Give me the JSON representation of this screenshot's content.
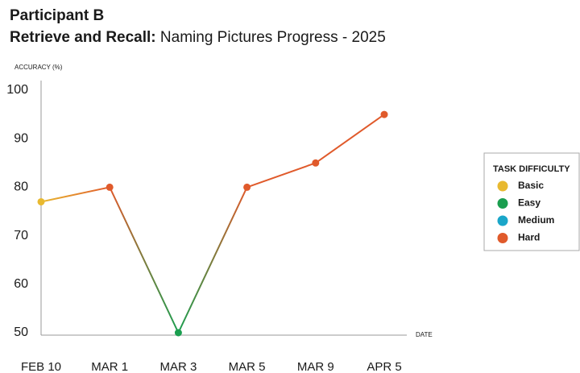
{
  "chart_data": {
    "type": "line",
    "title": "Participant B",
    "subtitle_bold": "Retrieve and Recall:",
    "subtitle": "Naming Pictures Progress - 2025",
    "y_label": "ACCURACY (%)",
    "x_label": "DATE",
    "categories": [
      "FEB 10",
      "MAR 1",
      "MAR 3",
      "MAR 5",
      "MAR 9",
      "APR 5"
    ],
    "series": [
      {
        "name": "Accuracy",
        "values": [
          77,
          80,
          50,
          80,
          85,
          95
        ],
        "point_difficulty": [
          "Basic",
          "Hard",
          "Easy",
          "Hard",
          "Hard",
          "Hard"
        ]
      }
    ],
    "ylim": [
      50,
      100
    ],
    "yticks": [
      50,
      60,
      70,
      80,
      90,
      100
    ],
    "grid": false,
    "legend": {
      "title": "TASK DIFFICULTY",
      "position": "right",
      "items": [
        {
          "name": "Basic",
          "color": "#e8b930"
        },
        {
          "name": "Easy",
          "color": "#1a9e4f"
        },
        {
          "name": "Medium",
          "color": "#1aa6c9"
        },
        {
          "name": "Hard",
          "color": "#e05a2b"
        }
      ]
    }
  }
}
